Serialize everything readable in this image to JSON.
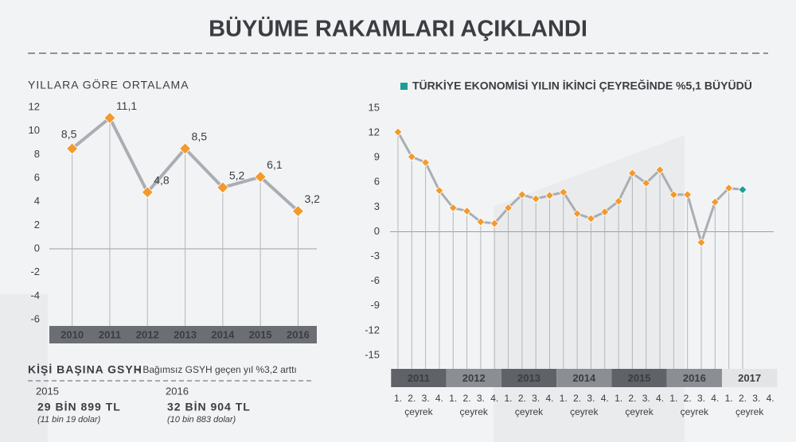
{
  "title": "BÜYÜME RAKAMLARI AÇIKLANDI",
  "chart_data": [
    {
      "type": "line",
      "title": "YILLARA GÖRE ORTALAMA",
      "categories": [
        "2010",
        "2011",
        "2012",
        "2013",
        "2014",
        "2015",
        "2016"
      ],
      "values": [
        8.5,
        11.1,
        4.8,
        8.5,
        5.2,
        6.1,
        3.2
      ],
      "value_labels": [
        "8,5",
        "11,1",
        "4,8",
        "8,5",
        "5,2",
        "6,1",
        "3,2"
      ],
      "color": "#f39a2c",
      "line_color": "#a9aeb4",
      "ylim": [
        -6,
        12
      ],
      "yticks": [
        12,
        10,
        8,
        6,
        4,
        2,
        0,
        -2,
        -4,
        -6
      ]
    },
    {
      "type": "line",
      "title": "TÜRKİYE EKONOMİSİ YILIN İKİNCİ ÇEYREĞİNDE %5,1 BÜYÜDÜ",
      "categories": [
        "1.",
        "2.",
        "3.",
        "4.",
        "1.",
        "2.",
        "3.",
        "4.",
        "1.",
        "2.",
        "3.",
        "4.",
        "1.",
        "2.",
        "3.",
        "4.",
        "1.",
        "2.",
        "3.",
        "4.",
        "1.",
        "2.",
        "3.",
        "4.",
        "1.",
        "2.",
        "3.",
        "4."
      ],
      "groups": [
        "2011",
        "2012",
        "2013",
        "2014",
        "2015",
        "2016",
        "2017"
      ],
      "group_sublabels": [
        "çeyrek",
        "çeyrek",
        "çeyrek",
        "çeyrek",
        "çeyrek",
        "çeyrek",
        "çeyrek"
      ],
      "values": [
        12.1,
        9.1,
        8.4,
        5.0,
        2.9,
        2.5,
        1.2,
        1.0,
        2.9,
        4.5,
        4.0,
        4.4,
        4.8,
        2.2,
        1.6,
        2.4,
        3.7,
        7.1,
        5.9,
        7.5,
        4.5,
        4.5,
        -1.3,
        3.6,
        5.3,
        5.1,
        null,
        null
      ],
      "color": "#f39a2c",
      "last_color": "#1a9e96",
      "line_color": "#a9aeb4",
      "ylim": [
        -15,
        15
      ],
      "yticks": [
        15,
        12,
        9,
        6,
        3,
        0,
        -3,
        -6,
        -9,
        -12,
        -15
      ]
    }
  ],
  "gsyh": {
    "title": "KİŞİ BAŞINA GSYH",
    "subtitle": "- Bağımsız GSYH geçen yıl %3,2 arttı",
    "items": [
      {
        "year": "2015",
        "value": "29 BİN 899 TL",
        "note": "(11 bin 19 dolar)"
      },
      {
        "year": "2016",
        "value": "32 BİN 904 TL",
        "note": "(10 bin 883 dolar)"
      }
    ]
  }
}
